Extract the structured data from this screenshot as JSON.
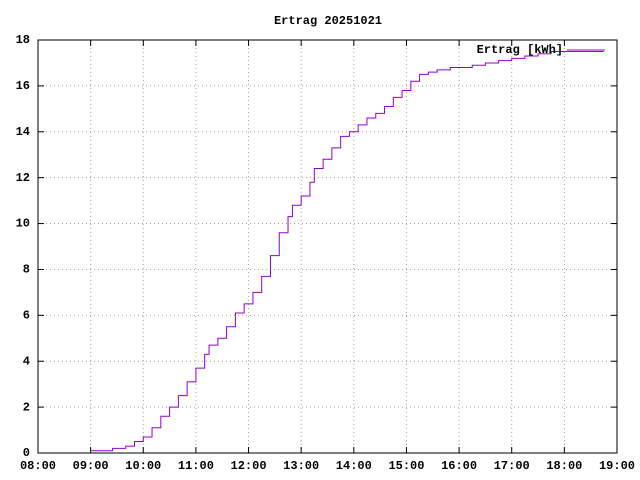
{
  "chart_data": {
    "type": "line",
    "title": "Ertrag 20251021",
    "x": [
      "09:00",
      "09:25",
      "09:40",
      "09:50",
      "10:00",
      "10:10",
      "10:20",
      "10:30",
      "10:40",
      "10:50",
      "11:00",
      "11:10",
      "11:15",
      "11:25",
      "11:35",
      "11:45",
      "11:55",
      "12:05",
      "12:15",
      "12:25",
      "12:35",
      "12:45",
      "12:50",
      "13:00",
      "13:10",
      "13:15",
      "13:25",
      "13:35",
      "13:45",
      "13:55",
      "14:05",
      "14:15",
      "14:25",
      "14:35",
      "14:45",
      "14:55",
      "15:05",
      "15:15",
      "15:25",
      "15:35",
      "15:50",
      "16:00",
      "16:15",
      "16:30",
      "16:45",
      "17:00",
      "17:15",
      "17:30",
      "17:45",
      "18:00",
      "18:45"
    ],
    "series": [
      {
        "name": "Ertrag [kWh]",
        "color": "#9400d3",
        "values": [
          0.1,
          0.2,
          0.3,
          0.5,
          0.7,
          1.1,
          1.6,
          2.0,
          2.5,
          3.1,
          3.7,
          4.3,
          4.7,
          5.0,
          5.5,
          6.1,
          6.5,
          7.0,
          7.7,
          8.6,
          9.6,
          10.3,
          10.8,
          11.2,
          11.8,
          12.4,
          12.8,
          13.3,
          13.8,
          14.0,
          14.3,
          14.6,
          14.8,
          15.1,
          15.5,
          15.8,
          16.2,
          16.5,
          16.6,
          16.7,
          16.8,
          16.8,
          16.9,
          17.0,
          17.1,
          17.2,
          17.3,
          17.4,
          17.5,
          17.5,
          17.5
        ]
      }
    ],
    "xlim": [
      "08:00",
      "19:00"
    ],
    "xticks": [
      "08:00",
      "09:00",
      "10:00",
      "11:00",
      "12:00",
      "13:00",
      "14:00",
      "15:00",
      "16:00",
      "17:00",
      "18:00",
      "19:00"
    ],
    "ylim": [
      0,
      18
    ],
    "yticks": [
      0,
      2,
      4,
      6,
      8,
      10,
      12,
      14,
      16,
      18
    ],
    "grid": true,
    "legend": "top-right"
  }
}
